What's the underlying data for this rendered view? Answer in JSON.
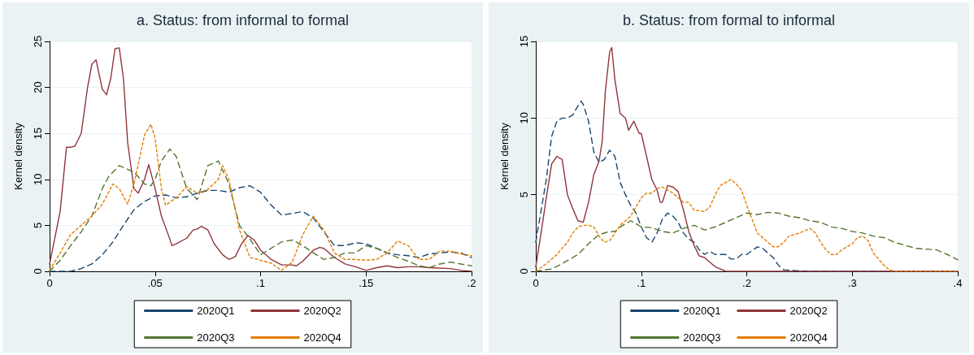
{
  "chart_data": [
    {
      "type": "line",
      "title": "a. Status: from informal to formal",
      "ylabel": "Kernel density",
      "xlim": [
        0,
        0.2
      ],
      "xticks": [
        0,
        {
          "value": 0.05,
          "label": ".05"
        },
        {
          "value": 0.1,
          "label": ".1"
        },
        {
          "value": 0.15,
          "label": ".15"
        },
        {
          "value": 0.2,
          "label": ".2"
        }
      ],
      "ylim": [
        0,
        25
      ],
      "yticks": [
        0,
        5,
        10,
        15,
        20,
        25
      ],
      "grid": "y",
      "legend": "bottom",
      "marker": "none",
      "series": [
        {
          "name": "2020Q1",
          "color": "#1a476f",
          "line_style": "dashed",
          "x": [
            0,
            0.01,
            0.015,
            0.02,
            0.025,
            0.03,
            0.035,
            0.04,
            0.045,
            0.05,
            0.055,
            0.06,
            0.065,
            0.07,
            0.075,
            0.08,
            0.085,
            0.09,
            0.095,
            0.1,
            0.105,
            0.11,
            0.115,
            0.12,
            0.125,
            0.13,
            0.135,
            0.14,
            0.145,
            0.15,
            0.155,
            0.16,
            0.165,
            0.17,
            0.175,
            0.18,
            0.185,
            0.19,
            0.195,
            0.2
          ],
          "values": [
            0,
            0,
            0.3,
            0.8,
            1.8,
            3.2,
            5,
            6.7,
            7.6,
            8.2,
            8.3,
            8,
            8.1,
            8.5,
            8.8,
            8.8,
            8.6,
            9.1,
            9.3,
            8.6,
            7.2,
            6.1,
            6.3,
            6.5,
            5.8,
            4.3,
            2.8,
            2.8,
            3.1,
            3,
            2.5,
            2,
            1.8,
            1.7,
            1.5,
            1.9,
            2,
            2.1,
            2,
            1.5
          ]
        },
        {
          "name": "2020Q2",
          "color": "#90353b",
          "line_style": "solid",
          "x": [
            0,
            0.005,
            0.008,
            0.01,
            0.012,
            0.015,
            0.018,
            0.02,
            0.022,
            0.025,
            0.027,
            0.029,
            0.031,
            0.033,
            0.035,
            0.037,
            0.04,
            0.042,
            0.045,
            0.047,
            0.05,
            0.053,
            0.057,
            0.058,
            0.06,
            0.065,
            0.068,
            0.07,
            0.072,
            0.075,
            0.078,
            0.082,
            0.085,
            0.088,
            0.091,
            0.094,
            0.097,
            0.1,
            0.105,
            0.11,
            0.115,
            0.117,
            0.12,
            0.125,
            0.128,
            0.13,
            0.135,
            0.14,
            0.145,
            0.15,
            0.155,
            0.16,
            0.165,
            0.17,
            0.175,
            0.18,
            0.19,
            0.195,
            0.2
          ],
          "values": [
            0.8,
            6.5,
            13.5,
            13.5,
            13.6,
            15,
            20,
            22.5,
            23,
            19.8,
            19.2,
            21,
            24.2,
            24.3,
            21,
            14,
            9,
            8.5,
            10,
            11.6,
            9,
            6,
            3.5,
            2.8,
            3,
            3.6,
            4.5,
            4.6,
            4.9,
            4.5,
            3,
            1.8,
            1.3,
            1.6,
            3,
            3.9,
            3.4,
            2.3,
            1.3,
            0.7,
            0.7,
            0.6,
            1.1,
            2.3,
            2.6,
            2.5,
            1.5,
            0.8,
            0.5,
            0.1,
            0.4,
            0.6,
            0.4,
            0.5,
            0.5,
            0.4,
            0.3,
            0.1,
            0
          ]
        },
        {
          "name": "2020Q3",
          "color": "#55752f",
          "line_style": "dashed",
          "x": [
            0,
            0.005,
            0.01,
            0.015,
            0.02,
            0.025,
            0.028,
            0.033,
            0.035,
            0.04,
            0.045,
            0.048,
            0.05,
            0.053,
            0.057,
            0.06,
            0.065,
            0.07,
            0.073,
            0.075,
            0.08,
            0.085,
            0.09,
            0.095,
            0.1,
            0.105,
            0.11,
            0.115,
            0.12,
            0.125,
            0.13,
            0.135,
            0.14,
            0.145,
            0.15,
            0.155,
            0.16,
            0.165,
            0.17,
            0.175,
            0.18,
            0.185,
            0.19,
            0.195,
            0.2
          ],
          "values": [
            0,
            1.2,
            2.8,
            4.3,
            6,
            9,
            10.3,
            11.5,
            11.3,
            10.8,
            9.5,
            9.3,
            10,
            12,
            13.3,
            12.5,
            9,
            7.8,
            10,
            11.5,
            12,
            9.5,
            5,
            3.5,
            1.8,
            2.5,
            3.2,
            3.4,
            2.8,
            2,
            1.3,
            1.5,
            2,
            2,
            2.8,
            2.5,
            2,
            1.5,
            1.1,
            0.6,
            0.4,
            0.8,
            1,
            0.8,
            0.6
          ]
        },
        {
          "name": "2020Q4",
          "color": "#e37e00",
          "line_style": "dotted",
          "x": [
            0,
            0.005,
            0.01,
            0.015,
            0.02,
            0.025,
            0.03,
            0.033,
            0.037,
            0.04,
            0.045,
            0.048,
            0.05,
            0.053,
            0.055,
            0.06,
            0.065,
            0.07,
            0.075,
            0.08,
            0.082,
            0.085,
            0.09,
            0.095,
            0.1,
            0.105,
            0.11,
            0.115,
            0.12,
            0.125,
            0.13,
            0.135,
            0.14,
            0.145,
            0.15,
            0.155,
            0.16,
            0.165,
            0.17,
            0.175,
            0.18,
            0.185,
            0.19,
            0.195,
            0.2
          ],
          "values": [
            0.1,
            2,
            4,
            5,
            6,
            7.3,
            9.5,
            9,
            7.3,
            9.5,
            14.8,
            16,
            14.5,
            9,
            7.2,
            8,
            9.2,
            8.5,
            8.9,
            10,
            11.5,
            10,
            4.5,
            1.5,
            1.2,
            0.9,
            0.1,
            1,
            4,
            6,
            4.5,
            2,
            1.3,
            1.3,
            1.2,
            1.3,
            2,
            3.3,
            2.8,
            1.3,
            1.3,
            2.2,
            2.2,
            1.9,
            1.7
          ]
        }
      ]
    },
    {
      "type": "line",
      "title": "b. Status: from formal to informal",
      "ylabel": "Kernel density",
      "xlim": [
        0,
        0.4
      ],
      "xticks": [
        0,
        {
          "value": 0.1,
          "label": ".1"
        },
        {
          "value": 0.2,
          "label": ".2"
        },
        {
          "value": 0.3,
          "label": ".3"
        },
        {
          "value": 0.4,
          "label": ".4"
        }
      ],
      "ylim": [
        0,
        15
      ],
      "yticks": [
        0,
        5,
        10,
        15
      ],
      "grid": "y",
      "legend": "bottom",
      "marker": "none",
      "series": [
        {
          "name": "2020Q1",
          "color": "#1a476f",
          "line_style": "dashed",
          "x": [
            0,
            0.01,
            0.015,
            0.02,
            0.025,
            0.03,
            0.035,
            0.04,
            0.043,
            0.045,
            0.05,
            0.055,
            0.06,
            0.065,
            0.07,
            0.075,
            0.08,
            0.085,
            0.09,
            0.095,
            0.1,
            0.105,
            0.11,
            0.115,
            0.12,
            0.125,
            0.13,
            0.135,
            0.14,
            0.145,
            0.15,
            0.155,
            0.16,
            0.165,
            0.17,
            0.18,
            0.185,
            0.19,
            0.195,
            0.2,
            0.21,
            0.215,
            0.22,
            0.225,
            0.23,
            0.235,
            0.245,
            0.26,
            0.3,
            0.4
          ],
          "values": [
            1.9,
            6,
            8.8,
            9.8,
            10,
            10,
            10.2,
            10.8,
            11.1,
            10.9,
            9.8,
            7.8,
            7.1,
            7.3,
            7.9,
            7.5,
            5.8,
            5,
            4.3,
            3.8,
            2.9,
            2.2,
            1.9,
            2.5,
            3.4,
            3.8,
            3.6,
            3.2,
            2.5,
            2.1,
            1.9,
            1.4,
            1.1,
            1.3,
            1.1,
            1.1,
            0.8,
            0.8,
            1.1,
            1.1,
            1.6,
            1.5,
            1.2,
            0.9,
            0.4,
            0.1,
            0.05,
            0,
            0,
            0
          ]
        },
        {
          "name": "2020Q2",
          "color": "#90353b",
          "line_style": "solid",
          "x": [
            0,
            0.005,
            0.01,
            0.015,
            0.02,
            0.025,
            0.03,
            0.035,
            0.04,
            0.045,
            0.05,
            0.055,
            0.06,
            0.063,
            0.066,
            0.07,
            0.072,
            0.075,
            0.08,
            0.085,
            0.088,
            0.093,
            0.098,
            0.1,
            0.105,
            0.11,
            0.115,
            0.118,
            0.12,
            0.125,
            0.13,
            0.135,
            0.14,
            0.145,
            0.15,
            0.155,
            0.16,
            0.165,
            0.17,
            0.175,
            0.18,
            0.2,
            0.3,
            0.4
          ],
          "values": [
            0.3,
            2.5,
            4.8,
            7,
            7.5,
            7.3,
            5,
            4.1,
            3.3,
            3.2,
            4.5,
            6.3,
            7.2,
            8.5,
            11.8,
            14.3,
            14.6,
            12.5,
            10.3,
            10,
            9.2,
            9.8,
            9,
            9,
            7.5,
            6,
            5.3,
            4.5,
            4.5,
            5.6,
            5.5,
            5.2,
            4,
            2.6,
            1.7,
            1,
            0.9,
            0.6,
            0.3,
            0.15,
            0,
            0,
            0,
            0
          ]
        },
        {
          "name": "2020Q3",
          "color": "#55752f",
          "line_style": "dashed",
          "x": [
            0,
            0.015,
            0.025,
            0.04,
            0.05,
            0.06,
            0.07,
            0.075,
            0.08,
            0.09,
            0.1,
            0.11,
            0.12,
            0.13,
            0.14,
            0.15,
            0.16,
            0.17,
            0.18,
            0.19,
            0.2,
            0.21,
            0.22,
            0.23,
            0.24,
            0.25,
            0.26,
            0.27,
            0.28,
            0.29,
            0.3,
            0.31,
            0.32,
            0.33,
            0.34,
            0.35,
            0.36,
            0.37,
            0.38,
            0.39,
            0.4
          ],
          "values": [
            0,
            0.15,
            0.5,
            1.1,
            1.8,
            2.4,
            2.6,
            2.6,
            2.9,
            3.3,
            2.9,
            2.85,
            2.6,
            2.5,
            2.8,
            3,
            2.7,
            2.9,
            3.2,
            3.5,
            3.8,
            3.7,
            3.85,
            3.8,
            3.6,
            3.5,
            3.3,
            3.2,
            2.9,
            2.8,
            2.6,
            2.5,
            2.3,
            2.2,
            1.9,
            1.7,
            1.5,
            1.45,
            1.4,
            1.1,
            0.75
          ]
        },
        {
          "name": "2020Q4",
          "color": "#e37e00",
          "line_style": "dotted",
          "x": [
            0,
            0.01,
            0.02,
            0.03,
            0.035,
            0.04,
            0.045,
            0.05,
            0.055,
            0.06,
            0.065,
            0.07,
            0.075,
            0.08,
            0.09,
            0.1,
            0.105,
            0.11,
            0.115,
            0.12,
            0.13,
            0.14,
            0.145,
            0.15,
            0.16,
            0.165,
            0.17,
            0.175,
            0.18,
            0.185,
            0.19,
            0.195,
            0.2,
            0.21,
            0.22,
            0.225,
            0.23,
            0.235,
            0.24,
            0.25,
            0.26,
            0.265,
            0.27,
            0.275,
            0.28,
            0.285,
            0.29,
            0.3,
            0.305,
            0.31,
            0.315,
            0.32,
            0.325,
            0.33,
            0.335,
            0.34,
            0.4
          ],
          "values": [
            0,
            0.5,
            1.1,
            1.9,
            2.5,
            2.9,
            3,
            3,
            2.9,
            2.3,
            1.9,
            2,
            2.5,
            3,
            3.6,
            4.8,
            5.1,
            5.1,
            5.4,
            5.5,
            5.1,
            4.5,
            4.5,
            4,
            3.9,
            4.2,
            5,
            5.6,
            5.8,
            6,
            5.7,
            5.3,
            4.3,
            2.5,
            1.9,
            1.6,
            1.6,
            1.9,
            2.3,
            2.5,
            2.8,
            2.5,
            1.9,
            1.4,
            1.1,
            1.1,
            1.4,
            1.8,
            2.2,
            2.3,
            2,
            1.2,
            0.8,
            0.4,
            0.1,
            0,
            0
          ]
        }
      ]
    }
  ]
}
